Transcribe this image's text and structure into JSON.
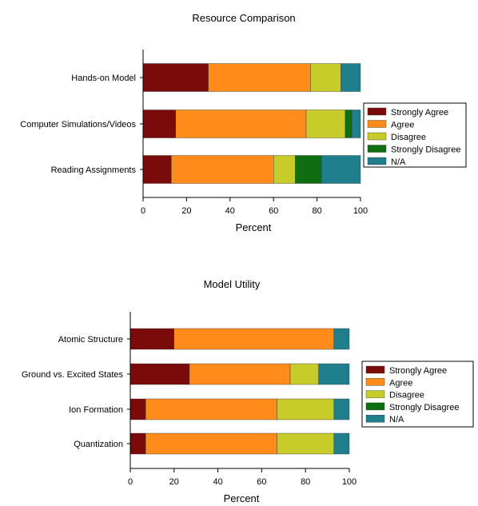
{
  "chart_data": [
    {
      "type": "bar",
      "orientation": "horizontal",
      "stacked": true,
      "title": "Resource Comparison",
      "xlabel": "Percent",
      "ylabel": "",
      "xlim": [
        0,
        100
      ],
      "xticks": [
        0,
        20,
        40,
        60,
        80,
        100
      ],
      "grid": false,
      "legend_position": "right",
      "categories": [
        "Hands-on Model",
        "Computer Simulations/Videos",
        "Reading Assignments"
      ],
      "series": [
        {
          "name": "Strongly Agree",
          "color": "#7b0b0b",
          "values": [
            30,
            15,
            13
          ]
        },
        {
          "name": "Agree",
          "color": "#ff8c1a",
          "values": [
            47,
            60,
            47
          ]
        },
        {
          "name": "Disagree",
          "color": "#c8cc2a",
          "values": [
            14,
            18,
            10
          ]
        },
        {
          "name": "Strongly Disagree",
          "color": "#0f6e0f",
          "values": [
            0,
            3,
            12
          ]
        },
        {
          "name": "N/A",
          "color": "#1f7f8c",
          "values": [
            9,
            4,
            18
          ]
        }
      ]
    },
    {
      "type": "bar",
      "orientation": "horizontal",
      "stacked": true,
      "title": "Model Utility",
      "xlabel": "Percent",
      "ylabel": "",
      "xlim": [
        0,
        100
      ],
      "xticks": [
        0,
        20,
        40,
        60,
        80,
        100
      ],
      "grid": false,
      "legend_position": "right",
      "categories": [
        "Atomic Structure",
        "Ground vs. Excited States",
        "Ion Formation",
        "Quantization"
      ],
      "series": [
        {
          "name": "Strongly Agree",
          "color": "#7b0b0b",
          "values": [
            20,
            27,
            7,
            7
          ]
        },
        {
          "name": "Agree",
          "color": "#ff8c1a",
          "values": [
            73,
            46,
            60,
            60
          ]
        },
        {
          "name": "Disagree",
          "color": "#c8cc2a",
          "values": [
            0,
            13,
            26,
            26
          ]
        },
        {
          "name": "Strongly Disagree",
          "color": "#0f6e0f",
          "values": [
            0,
            0,
            0,
            0
          ]
        },
        {
          "name": "N/A",
          "color": "#1f7f8c",
          "values": [
            7,
            14,
            7,
            7
          ]
        }
      ]
    }
  ]
}
